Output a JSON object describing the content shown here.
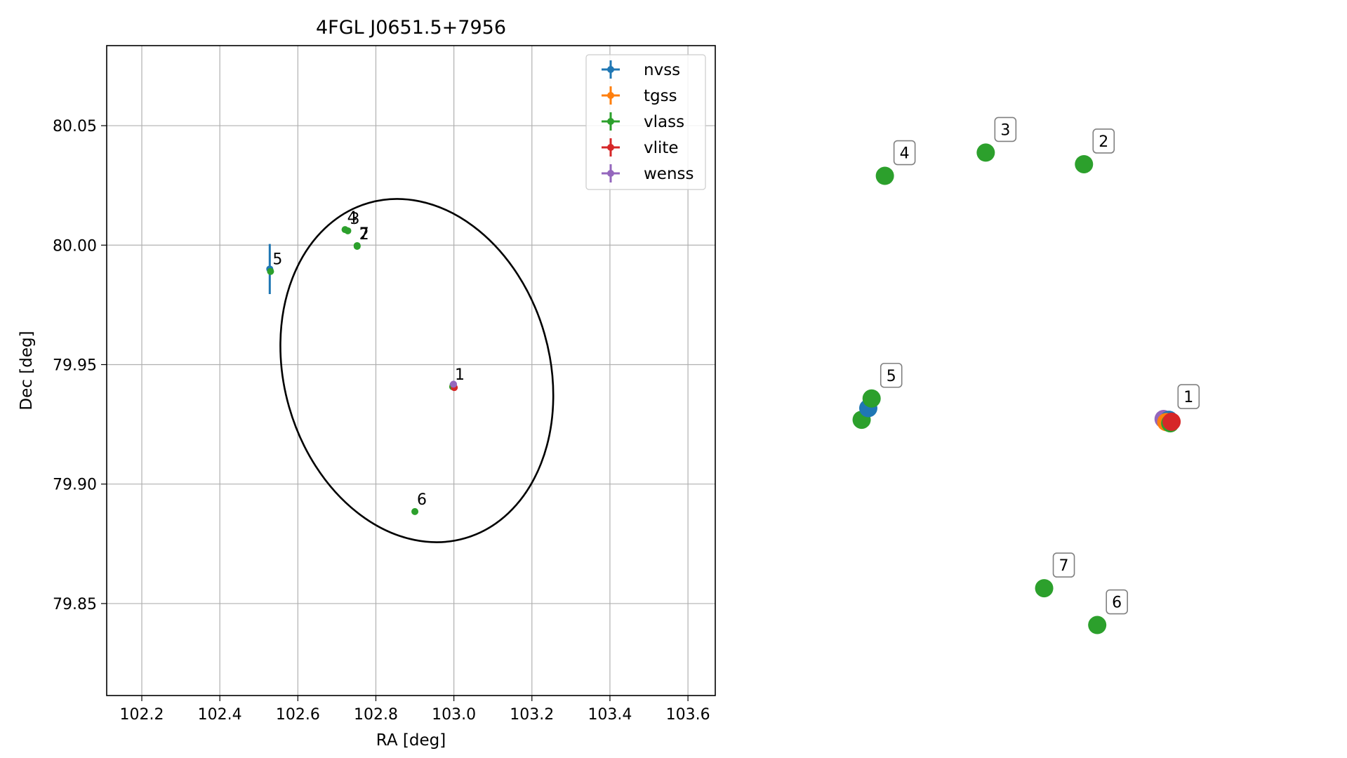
{
  "chart_data": [
    {
      "type": "scatter",
      "title": "4FGL J0651.5+7956",
      "xlabel": "RA [deg]",
      "ylabel": "Dec [deg]",
      "xlim": [
        102.11,
        103.67
      ],
      "ylim": [
        79.8115,
        80.0835
      ],
      "xticks": [
        102.2,
        102.4,
        102.6,
        102.8,
        103.0,
        103.2,
        103.4,
        103.6
      ],
      "xtick_labels": [
        "102.2",
        "102.4",
        "102.6",
        "102.8",
        "103.0",
        "103.2",
        "103.4",
        "103.6"
      ],
      "yticks": [
        79.85,
        79.9,
        79.95,
        80.0,
        80.05
      ],
      "ytick_labels": [
        "79.85",
        "79.90",
        "79.95",
        "80.00",
        "80.05"
      ],
      "grid": true,
      "legend_position": "top-right",
      "series": [
        {
          "name": "nvss",
          "color": "#1f77b4",
          "points": [
            {
              "x": 102.998,
              "y": 79.9415,
              "label": ""
            },
            {
              "x": 102.528,
              "y": 79.99,
              "label": "",
              "yerr": 0.0105
            }
          ]
        },
        {
          "name": "tgss",
          "color": "#ff7f0e",
          "points": [
            {
              "x": 102.997,
              "y": 79.9408,
              "label": ""
            }
          ]
        },
        {
          "name": "vlass",
          "color": "#2ca02c",
          "points": [
            {
              "x": 102.997,
              "y": 79.9407,
              "label": "1"
            },
            {
              "x": 102.752,
              "y": 79.9995,
              "label": "2"
            },
            {
              "x": 102.728,
              "y": 80.006,
              "label": "3"
            },
            {
              "x": 102.721,
              "y": 80.0065,
              "label": "4"
            },
            {
              "x": 102.53,
              "y": 79.989,
              "label": "5"
            },
            {
              "x": 102.9,
              "y": 79.8885,
              "label": "6"
            },
            {
              "x": 102.752,
              "y": 79.9998,
              "label": "7"
            }
          ]
        },
        {
          "name": "vlite",
          "color": "#d62728",
          "points": [
            {
              "x": 103.001,
              "y": 79.9404,
              "label": ""
            }
          ]
        },
        {
          "name": "wenss",
          "color": "#9467bd",
          "points": [
            {
              "x": 102.999,
              "y": 79.9418,
              "label": ""
            }
          ]
        }
      ],
      "ellipse": {
        "center_x": 102.905,
        "center_y": 79.9475,
        "semi_x": 0.3405,
        "semi_y": 0.073,
        "angle_deg": -16,
        "color": "#000000"
      }
    },
    {
      "type": "scatter",
      "title": "",
      "xlabel": "",
      "ylabel": "",
      "grid": false,
      "axes_visible": false,
      "points": [
        {
          "x": 103.0,
          "y": 79.9417,
          "color": "#9467bd",
          "label": ""
        },
        {
          "x": 103.008,
          "y": 79.9415,
          "color": "#1f77b4",
          "label": "1"
        },
        {
          "x": 103.004,
          "y": 79.9409,
          "color": "#ff7f0e",
          "label": ""
        },
        {
          "x": 103.01,
          "y": 79.9406,
          "color": "#2ca02c",
          "label": ""
        },
        {
          "x": 103.012,
          "y": 79.941,
          "color": "#d62728",
          "label": ""
        },
        {
          "x": 102.9,
          "y": 79.8885,
          "color": "#2ca02c",
          "label": "6"
        },
        {
          "x": 102.82,
          "y": 79.898,
          "color": "#2ca02c",
          "label": "7"
        },
        {
          "x": 102.545,
          "y": 79.9415,
          "color": "#2ca02c",
          "label": ""
        },
        {
          "x": 102.555,
          "y": 79.9445,
          "color": "#1f77b4",
          "label": ""
        },
        {
          "x": 102.56,
          "y": 79.947,
          "color": "#2ca02c",
          "label": "5"
        },
        {
          "x": 102.58,
          "y": 80.0045,
          "color": "#2ca02c",
          "label": "4"
        },
        {
          "x": 102.732,
          "y": 80.0105,
          "color": "#2ca02c",
          "label": "3"
        },
        {
          "x": 102.88,
          "y": 80.0075,
          "color": "#2ca02c",
          "label": "2"
        }
      ]
    }
  ]
}
